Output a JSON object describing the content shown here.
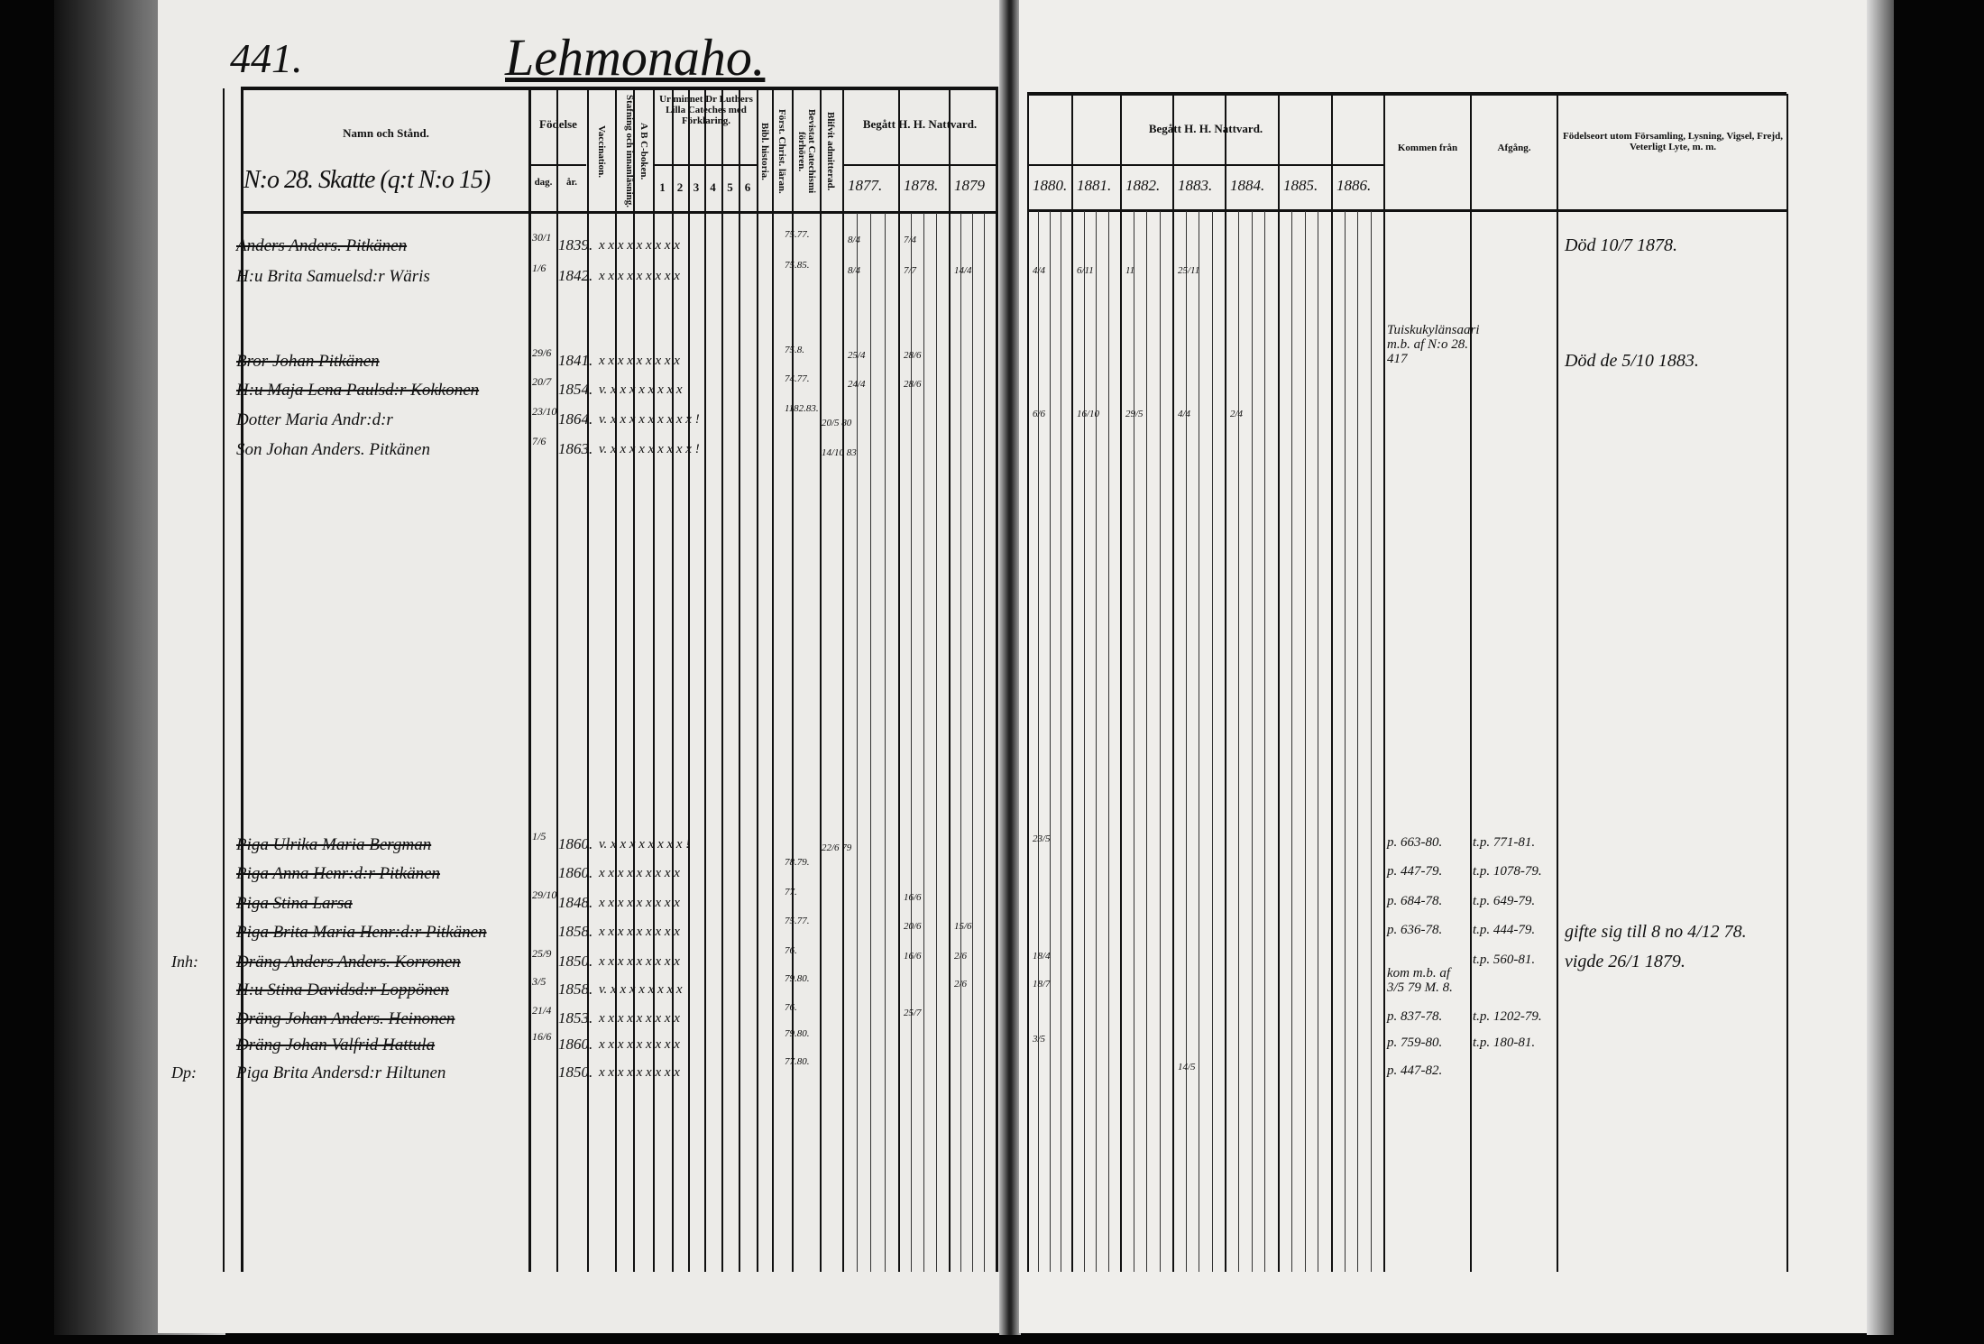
{
  "page_number": "441.",
  "village": "Lehmonaho.",
  "household": "N:o 28. Skatte (q:t N:o 15)",
  "left_header": {
    "name": "Namn och Stånd.",
    "birth": "Födelse",
    "birth_day": "dag.",
    "birth_year": "år.",
    "vaccination": "Vaccination.",
    "reading": "Stafning och innanläsning.",
    "abc": "A B C-boken.",
    "catechism": "Ur minnet Dr Luthers Lilla Cateches med Förklaring.",
    "catechism_parts": [
      "1",
      "2",
      "3",
      "4",
      "5",
      "6"
    ],
    "bible": "Bibl. historia.",
    "christian": "Först. Christ. läran.",
    "hearings": "Bevistat Catechismi förhören.",
    "admitted": "Blifvit admitterad.",
    "communion": "Begått H. H. Nattvard.",
    "years": [
      "1877.",
      "1878.",
      "1879"
    ]
  },
  "right_header": {
    "communion": "Begått H. H. Nattvard.",
    "years": [
      "1880.",
      "1881.",
      "1882.",
      "1883.",
      "1884.",
      "1885.",
      "1886."
    ],
    "came_from": "Kommen från",
    "departure": "Afgång.",
    "notes": "Födelseort utom Församling, Lysning, Vigsel, Frejd, Veterligt Lyte, m. m."
  },
  "rows": [
    {
      "margin": "",
      "name": "Anders Anders. Pitkänen",
      "struck": true,
      "day": "30/1",
      "year": "1839.",
      "marks": "x x x x x x x x x",
      "hearing": "75.77.",
      "communion": {
        "1877": "8/4",
        "1878": "7/4"
      },
      "came_from": "",
      "departure": "",
      "note": "Död 10/7 1878."
    },
    {
      "margin": "",
      "name": "H:u Brita Samuelsd:r Wäris",
      "struck": false,
      "day": "1/6",
      "year": "1842.",
      "marks": "x x x x x x x x x",
      "hearing": "75.85.",
      "communion": {
        "1877": "8/4",
        "1878": "7/7",
        "1879": "14/4",
        "1880": "4/4",
        "1881": "6/11",
        "1882": "11",
        "1883": "25/11"
      },
      "came_from": "",
      "departure": "",
      "note": ""
    },
    {
      "margin": "",
      "name": "Bror Johan Pitkänen",
      "struck": true,
      "day": "29/6",
      "year": "1841.",
      "marks": "x x x x x x x x x",
      "hearing": "75.8.",
      "communion": {
        "1877": "25/4",
        "1878": "28/6"
      },
      "came_from": "Tuiskukylänsaari m.b. af N:o 28. 417",
      "departure": "",
      "note": "Död de 5/10 1883."
    },
    {
      "margin": "",
      "name": "H:u Maja Lena Paulsd:r Kokkonen",
      "struck": true,
      "day": "20/7",
      "year": "1854.",
      "marks": "v. x x x x x x x x",
      "hearing": "74.77.",
      "communion": {
        "1877": "24/4",
        "1878": "28/6"
      },
      "came_from": "",
      "departure": "",
      "note": ""
    },
    {
      "margin": "",
      "name": "Dotter Maria Andr:d:r",
      "struck": false,
      "day": "23/10",
      "year": "1864.",
      "marks": "v. x x x x x x x x x !",
      "hearing": "1182.83.",
      "admitted": "20/5 80",
      "communion": {
        "1880": "6/6",
        "1881": "16/10",
        "1882": "29/5",
        "1883": "4/4",
        "1884": "2/4"
      },
      "came_from": "",
      "departure": "",
      "note": ""
    },
    {
      "margin": "",
      "name": "Son Johan Anders. Pitkänen",
      "struck": false,
      "day": "7/6",
      "year": "1863.",
      "marks": "v. x x x x x x x x x !",
      "hearing": "",
      "admitted": "14/10 83",
      "communion": {},
      "came_from": "",
      "departure": "",
      "note": ""
    },
    {
      "margin": "",
      "name": "Piga Ulrika Maria Bergman",
      "struck": true,
      "day": "1/5",
      "year": "1860.",
      "marks": "v. x x x x x x x x !",
      "hearing": "",
      "admitted": "22/6 79",
      "communion": {
        "1880": "23/5"
      },
      "came_from": "p. 663-80.",
      "departure": "t.p. 771-81.",
      "note": ""
    },
    {
      "margin": "",
      "name": "Piga Anna Henr:d:r Pitkänen",
      "struck": true,
      "day": "",
      "year": "1860.",
      "marks": "x x x x x x x x x",
      "hearing": "78.79.",
      "communion": {},
      "came_from": "p. 447-79.",
      "departure": "t.p. 1078-79.",
      "note": ""
    },
    {
      "margin": "",
      "name": "Piga Stina Larsa",
      "struck": true,
      "day": "29/10",
      "year": "1848.",
      "marks": "x x x x x x x x x",
      "hearing": "77.",
      "communion": {
        "1878": "16/6"
      },
      "came_from": "p. 684-78.",
      "departure": "t.p. 649-79.",
      "note": ""
    },
    {
      "margin": "",
      "name": "Piga Brita Maria Henr:d:r Pitkänen",
      "struck": true,
      "day": "",
      "year": "1858.",
      "marks": "x x x x x x x x x",
      "hearing": "75.77.",
      "communion": {
        "1878": "20/6",
        "1879": "15/6"
      },
      "came_from": "p. 636-78.",
      "departure": "t.p. 444-79.",
      "note": "gifte sig till 8 no 4/12 78."
    },
    {
      "margin": "Inh:",
      "name": "Dräng Anders Anders. Korronen",
      "struck": true,
      "day": "25/9",
      "year": "1850.",
      "marks": "x x x x x x x x x",
      "hearing": "76.",
      "communion": {
        "1878": "16/6",
        "1879": "2/6",
        "1880": "18/4"
      },
      "came_from": "",
      "departure": "t.p. 560-81.",
      "note": "vigde 26/1 1879."
    },
    {
      "margin": "",
      "name": "H:u Stina Davidsd:r Loppönen",
      "struck": true,
      "day": "3/5",
      "year": "1858.",
      "marks": "v. x x x x x x x x",
      "hearing": "79.80.",
      "communion": {
        "1879": "2/6",
        "1880": "18/7"
      },
      "came_from": "kom m.b. af 3/5 79 M. 8.",
      "departure": "",
      "note": ""
    },
    {
      "margin": "",
      "name": "Dräng Johan Anders. Heinonen",
      "struck": true,
      "day": "21/4",
      "year": "1853.",
      "marks": "x x x x x x x x x",
      "hearing": "76.",
      "communion": {
        "1878": "25/7"
      },
      "came_from": "p. 837-78.",
      "departure": "t.p. 1202-79.",
      "note": ""
    },
    {
      "margin": "",
      "name": "Dräng Johan Valfrid Hattula",
      "struck": true,
      "day": "16/6",
      "year": "1860.",
      "marks": "x x x x x x x x x",
      "hearing": "79.80.",
      "communion": {
        "1880": "3/5"
      },
      "came_from": "p. 759-80.",
      "departure": "t.p. 180-81.",
      "note": ""
    },
    {
      "margin": "Dp:",
      "name": "Piga Brita Andersd:r Hiltunen",
      "struck": false,
      "day": "",
      "year": "1850.",
      "marks": "x x x x x x x x x",
      "hearing": "77.80.",
      "communion": {
        "1883": "14/5"
      },
      "came_from": "p. 447-82.",
      "departure": "",
      "note": ""
    }
  ]
}
